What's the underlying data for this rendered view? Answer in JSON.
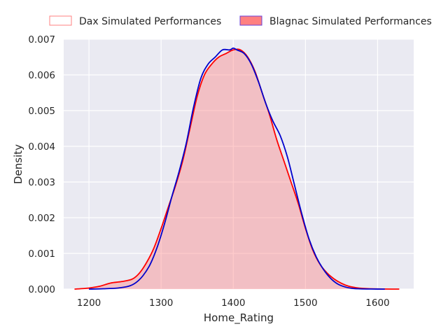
{
  "chart_data": {
    "type": "area",
    "title": "",
    "xlabel": "Home_Rating",
    "ylabel": "Density",
    "xlim": [
      1165,
      1650
    ],
    "ylim": [
      0,
      0.007
    ],
    "xticks": [
      1200,
      1300,
      1400,
      1500,
      1600
    ],
    "xtick_labels": [
      "1200",
      "1300",
      "1400",
      "1500",
      "1600"
    ],
    "yticks": [
      0,
      0.001,
      0.002,
      0.003,
      0.004,
      0.005,
      0.006,
      0.007
    ],
    "ytick_labels": [
      "0.000",
      "0.001",
      "0.002",
      "0.003",
      "0.004",
      "0.005",
      "0.006",
      "0.007"
    ],
    "grid": true,
    "background": "#eaeaf2",
    "legend_placement": "top, above plot",
    "series": [
      {
        "name": "Dax Simulated Performances",
        "line_color": "#ff0000",
        "fill_color": "#ff8080",
        "fill_opacity": 0.4,
        "x": [
          1180,
          1200,
          1215,
          1230,
          1245,
          1260,
          1270,
          1280,
          1290,
          1300,
          1310,
          1320,
          1330,
          1340,
          1350,
          1360,
          1370,
          1380,
          1390,
          1400,
          1410,
          1420,
          1430,
          1440,
          1450,
          1460,
          1470,
          1480,
          1490,
          1500,
          1510,
          1520,
          1530,
          1540,
          1550,
          1560,
          1570,
          1580,
          1600,
          1630
        ],
        "y": [
          0.0,
          3e-05,
          8e-05,
          0.00017,
          0.00021,
          0.00028,
          0.00045,
          0.00075,
          0.00115,
          0.0017,
          0.0023,
          0.0029,
          0.0036,
          0.0045,
          0.0054,
          0.006,
          0.0063,
          0.0065,
          0.0066,
          0.0067,
          0.0067,
          0.0065,
          0.0061,
          0.0055,
          0.0049,
          0.0042,
          0.0036,
          0.003,
          0.0024,
          0.0017,
          0.0011,
          0.0007,
          0.00045,
          0.00028,
          0.00016,
          8e-05,
          4e-05,
          2e-05,
          5e-06,
          0.0
        ]
      },
      {
        "name": "Blagnac Simulated Performances",
        "line_color": "#0000cc",
        "fill_color": "#ff8080",
        "fill_opacity": 0.0,
        "x": [
          1200,
          1220,
          1240,
          1255,
          1265,
          1275,
          1285,
          1295,
          1305,
          1315,
          1325,
          1335,
          1345,
          1355,
          1365,
          1375,
          1385,
          1395,
          1400,
          1405,
          1415,
          1425,
          1435,
          1445,
          1455,
          1465,
          1475,
          1485,
          1495,
          1505,
          1515,
          1525,
          1535,
          1545,
          1555,
          1565,
          1575,
          1590,
          1610
        ],
        "y": [
          0.0,
          1e-05,
          3e-05,
          8e-05,
          0.00018,
          0.00038,
          0.0007,
          0.0012,
          0.00185,
          0.0026,
          0.0033,
          0.0041,
          0.0051,
          0.0059,
          0.0063,
          0.0065,
          0.0067,
          0.0067,
          0.00675,
          0.0067,
          0.0066,
          0.0063,
          0.0058,
          0.0052,
          0.0047,
          0.0043,
          0.0037,
          0.0029,
          0.0021,
          0.0014,
          0.0009,
          0.00055,
          0.0003,
          0.00014,
          6e-05,
          2e-05,
          8e-06,
          2e-06,
          0.0
        ]
      }
    ]
  }
}
